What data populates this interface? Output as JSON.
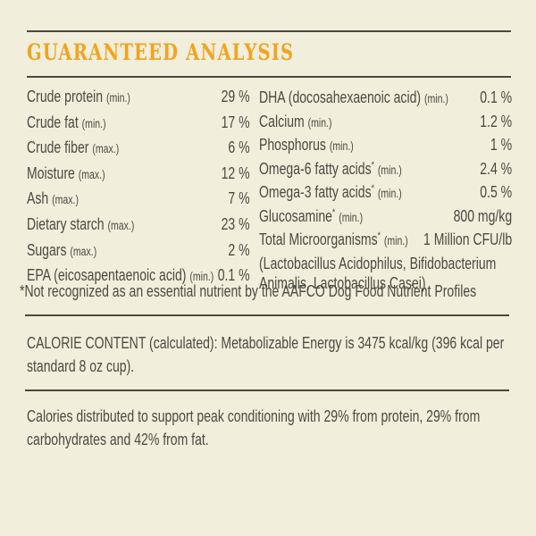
{
  "header": {
    "title": "GUARANTEED ANALYSIS"
  },
  "analysis": {
    "left_rows": [
      {
        "name": "Crude protein",
        "sup": "",
        "qualifier": "(min.)",
        "value": "29 %"
      },
      {
        "name": "Crude fat",
        "sup": "",
        "qualifier": "(min.)",
        "value": "17 %"
      },
      {
        "name": "Crude fiber",
        "sup": "",
        "qualifier": "(max.)",
        "value": "6 %"
      },
      {
        "name": "Moisture",
        "sup": "",
        "qualifier": "(max.)",
        "value": "12 %"
      },
      {
        "name": "Ash",
        "sup": "",
        "qualifier": "(max.)",
        "value": "7 %"
      },
      {
        "name": "Dietary starch",
        "sup": "",
        "qualifier": "(max.)",
        "value": "23 %"
      },
      {
        "name": "Sugars",
        "sup": "",
        "qualifier": "(max.)",
        "value": "2 %"
      },
      {
        "name": "EPA (eicosapentaenoic acid)",
        "sup": "",
        "qualifier": "(min.)",
        "value": "0.1 %"
      }
    ],
    "right_rows": [
      {
        "name": "DHA (docosahexaenoic acid)",
        "sup": "",
        "qualifier": "(min.)",
        "value": "0.1 %"
      },
      {
        "name": "Calcium",
        "sup": "",
        "qualifier": "(min.)",
        "value": "1.2 %"
      },
      {
        "name": "Phosphorus",
        "sup": "",
        "qualifier": "(min.)",
        "value": "1 %"
      },
      {
        "name": "Omega-6 fatty acids",
        "sup": "*",
        "qualifier": "(min.)",
        "value": "2.4 %"
      },
      {
        "name": "Omega-3 fatty acids",
        "sup": "*",
        "qualifier": "(min.)",
        "value": "0.5 %"
      },
      {
        "name": "Glucosamine",
        "sup": "*",
        "qualifier": "(min.)",
        "value": "800 mg/kg"
      },
      {
        "name": "Total Microorganisms",
        "sup": "*",
        "qualifier": "(min.)",
        "value": "1 Million CFU/lb"
      }
    ],
    "microorganisms_note_line1": "(Lactobacillus Acidophilus, Bifidobacterium",
    "microorganisms_note_line2": "Animalis, Lactobacillus Casei)",
    "footnote": "*Not recognized as an essential nutrient by the AAFCO Dog Food Nutrient Profiles"
  },
  "calorie_content": {
    "lines": [
      "CALORIE CONTENT (calculated): Metabolizable Energy is 3475 kcal/kg (396 kcal per",
      "standard 8 oz cup)."
    ]
  },
  "calorie_distribution": {
    "lines": [
      "Calories distributed to support peak conditioning with 29% from protein, 29% from",
      "carbohydrates and 42% from fat."
    ]
  },
  "colors": {
    "background": "#F1EEDC",
    "text": "#4B4A42",
    "accent_orange": "#F2A41E",
    "rule": "#4A493F"
  }
}
